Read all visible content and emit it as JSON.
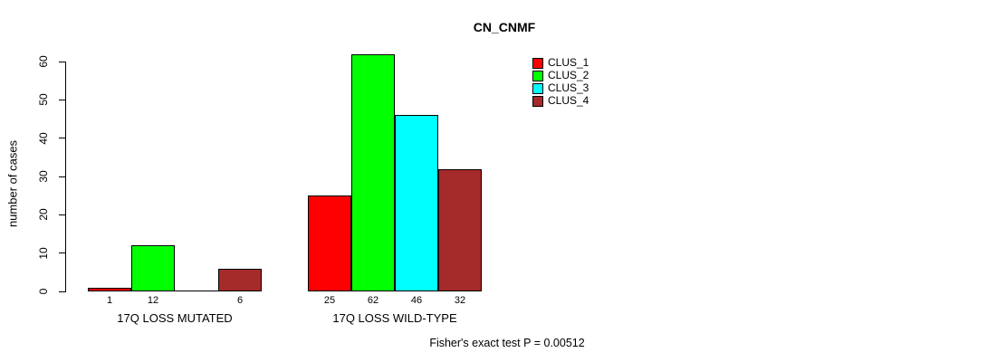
{
  "title": "CN_CNMF",
  "footer_annotation": "Fisher's exact test P = 0.00512",
  "legend": [
    {
      "label": "CLUS_1",
      "color": "#ff0000"
    },
    {
      "label": "CLUS_2",
      "color": "#00ff00"
    },
    {
      "label": "CLUS_3",
      "color": "#00ffff"
    },
    {
      "label": "CLUS_4",
      "color": "#a52a2a"
    }
  ],
  "chart_data": {
    "type": "bar",
    "title": "CN_CNMF",
    "ylabel": "number of cases",
    "xlabel": "",
    "ylim": [
      0,
      60
    ],
    "yticks": [
      0,
      10,
      20,
      30,
      40,
      50,
      60
    ],
    "grid": false,
    "legend_position": "top-right-outside",
    "categories": [
      "17Q LOSS MUTATED",
      "17Q LOSS WILD-TYPE"
    ],
    "series": [
      {
        "name": "CLUS_1",
        "color": "#ff0000",
        "values": [
          1,
          25
        ]
      },
      {
        "name": "CLUS_2",
        "color": "#00ff00",
        "values": [
          12,
          62
        ]
      },
      {
        "name": "CLUS_3",
        "color": "#00ffff",
        "values": [
          0,
          46
        ]
      },
      {
        "name": "CLUS_4",
        "color": "#a52a2a",
        "values": [
          6,
          32
        ]
      }
    ],
    "bar_value_labels": [
      [
        "1",
        "12",
        "",
        "6"
      ],
      [
        "25",
        "62",
        "46",
        "32"
      ]
    ],
    "annotation": "Fisher's exact test P = 0.00512"
  }
}
